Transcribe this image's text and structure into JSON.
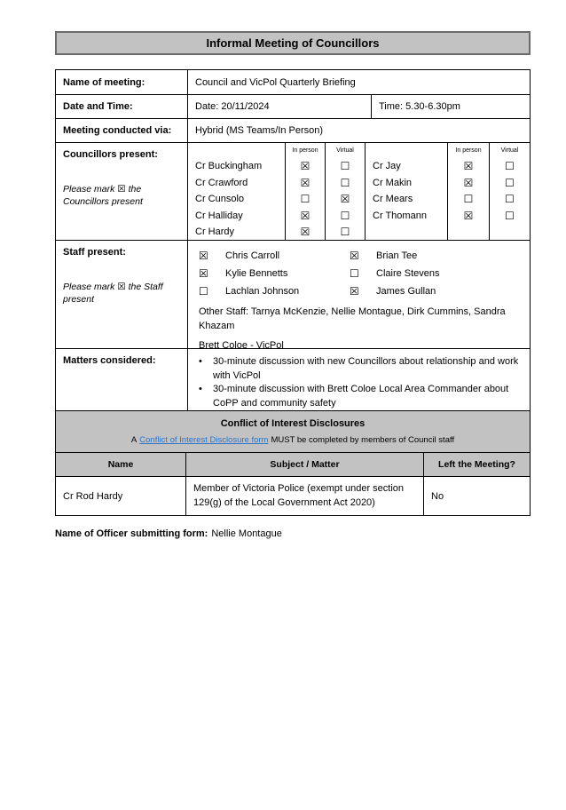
{
  "title": "Informal Meeting of Councillors",
  "meeting": {
    "name_label": "Name of meeting:",
    "name_value": "Council and VicPol Quarterly Briefing",
    "datetime_label": "Date and Time:",
    "date_value": "Date: 20/11/2024",
    "time_value": "Time: 5.30-6.30pm",
    "via_label": "Meeting conducted via:",
    "via_value": "Hybrid (MS Teams/In Person)"
  },
  "councillors": {
    "label": "Councillors present:",
    "note": "Please mark ☒ the Councillors present",
    "col_in_person": "In person",
    "col_virtual": "Virtual",
    "group1": [
      {
        "name": "Cr Buckingham",
        "in_person": "☒",
        "virtual": "☐"
      },
      {
        "name": "Cr Crawford",
        "in_person": "☒",
        "virtual": "☐"
      },
      {
        "name": "Cr Cunsolo",
        "in_person": "☐",
        "virtual": "☒"
      },
      {
        "name": "Cr Halliday",
        "in_person": "☒",
        "virtual": "☐"
      },
      {
        "name": "Cr Hardy",
        "in_person": "☒",
        "virtual": "☐"
      }
    ],
    "group2": [
      {
        "name": "Cr Jay",
        "in_person": "☒",
        "virtual": "☐"
      },
      {
        "name": "Cr Makin",
        "in_person": "☒",
        "virtual": "☐"
      },
      {
        "name": "Cr Mears",
        "in_person": "☐",
        "virtual": "☐"
      },
      {
        "name": "Cr Thomann",
        "in_person": "☒",
        "virtual": "☐"
      }
    ]
  },
  "staff": {
    "label": "Staff present:",
    "note": "Please mark ☒ the Staff present",
    "rows": [
      {
        "check1": "☒",
        "name1": "Chris Carroll",
        "check2": "☒",
        "name2": "Brian Tee"
      },
      {
        "check1": "☒",
        "name1": "Kylie Bennetts",
        "check2": "☐",
        "name2": "Claire Stevens"
      },
      {
        "check1": "☐",
        "name1": "Lachlan Johnson",
        "check2": "☒",
        "name2": "James Gullan"
      }
    ],
    "other": "Other Staff: Tarnya McKenzie, Nellie Montague, Dirk Cummins, Sandra Khazam",
    "vicpol": "Brett Coloe - VicPol"
  },
  "matters": {
    "label": "Matters considered:",
    "bullet": "•",
    "items": [
      "30-minute discussion with new Councillors about relationship and work with VicPol",
      "30-minute discussion with Brett Coloe Local Area Commander about CoPP and community safety"
    ]
  },
  "conflict": {
    "title": "Conflict of Interest Disclosures",
    "prefix": "A",
    "link_text": "Conflict of Interest Disclosure form",
    "suffix": "MUST be completed by members of Council staff"
  },
  "disclosure_table": {
    "headers": [
      "Name",
      "Subject / Matter",
      "Left the Meeting?"
    ],
    "row": {
      "name": "Cr Rod Hardy",
      "subject": "Member of Victoria Police (exempt under section 129(g) of the Local Government Act 2020)",
      "left": "No"
    }
  },
  "footer": {
    "label": "Name of Officer submitting form:",
    "value": "Nellie Montague"
  },
  "colors": {
    "header_gray": "#c2c2c2",
    "title_border": "#6b6b6b",
    "table_border": "#000000",
    "link_blue": "#2e74c9"
  }
}
